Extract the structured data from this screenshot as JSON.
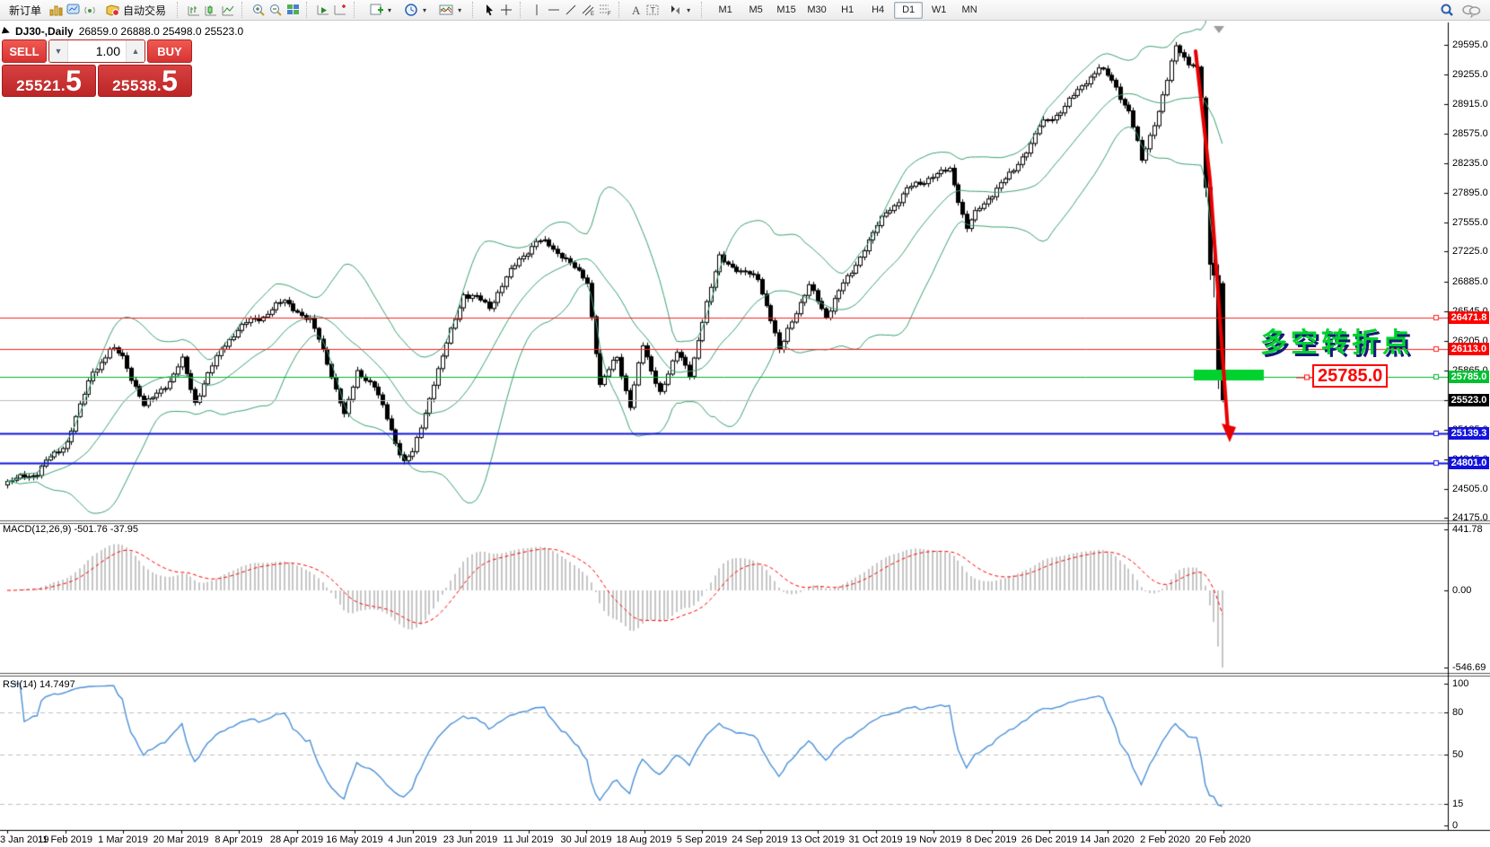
{
  "toolbar": {
    "new_order": "新订单",
    "autotrade": "自动交易",
    "timeframes": [
      "M1",
      "M5",
      "M15",
      "M30",
      "H1",
      "H4",
      "D1",
      "W1",
      "MN"
    ],
    "active_timeframe": "D1",
    "icons": [
      "charts-gold-icon",
      "terminal-icon",
      "signals-icon",
      "autotrade-icon",
      "bar-chart-icon",
      "candlestick-icon",
      "line-chart-icon",
      "zoom-in-icon",
      "zoom-out-icon",
      "tile-windows-icon",
      "auto-scroll-icon",
      "chart-shift-icon",
      "new-chart-icon",
      "period-icon",
      "indicators-icon",
      "cursor-icon",
      "crosshair-icon",
      "vertical-line-icon",
      "horizontal-line-icon",
      "trendline-icon",
      "channel-icon",
      "fibonacci-icon",
      "text-icon",
      "text-label-icon",
      "arrows-icon",
      "search-icon",
      "chat-icon"
    ]
  },
  "trade": {
    "sell_label": "SELL",
    "buy_label": "BUY",
    "volume": "1.00",
    "sell_price_main": "25521.",
    "sell_price_big": "5",
    "buy_price_main": "25538.",
    "buy_price_big": "5"
  },
  "chart": {
    "symbol_period": "DJ30-,Daily",
    "ohlc_text": "26859.0 26888.0 25498.0 25523.0"
  },
  "indicators": {
    "macd_label": "MACD(12,26,9)",
    "macd_values": "-501.76 -37.95",
    "rsi_label": "RSI(14)",
    "rsi_value": "14.7497"
  },
  "annotations": {
    "turning_point": "多空转折点",
    "level_label": "25785.0"
  },
  "colors": {
    "bands": "#3ba272",
    "candle_up": "#ffffff",
    "candle_down": "#000000",
    "macd_bar": "#c6c6c6",
    "macd_signal": "#ff0000",
    "rsi_line": "#4a90d8",
    "red_level": "#ff2020",
    "green_level": "#00b42d",
    "blue_level": "#1212e0",
    "current_line": "#bbbbbb",
    "arrow": "#e80000",
    "green_bar": "#00d22e"
  },
  "chart_data": [
    {
      "type": "candlestick",
      "symbol": "DJ30-",
      "timeframe": "Daily",
      "candle_count": 286,
      "last_ohlc": {
        "open": 26859.0,
        "high": 26888.0,
        "low": 25498.0,
        "close": 25523.0
      },
      "y_axis_labels": [
        "29595.0",
        "29255.0",
        "28915.0",
        "28575.0",
        "28235.0",
        "27895.0",
        "27555.0",
        "27225.0",
        "26885.0",
        "26545.0",
        "26205.0",
        "25865.0",
        "25525.0",
        "25185.0",
        "24845.0",
        "24505.0",
        "24175.0"
      ],
      "x_labels": [
        "3 Jan 2019",
        "11 Feb 2019",
        "1 Mar 2019",
        "20 Mar 2019",
        "8 Apr 2019",
        "28 Apr 2019",
        "16 May 2019",
        "4 Jun 2019",
        "23 Jun 2019",
        "11 Jul 2019",
        "30 Jul 2019",
        "18 Aug 2019",
        "5 Sep 2019",
        "24 Sep 2019",
        "13 Oct 2019",
        "31 Oct 2019",
        "19 Nov 2019",
        "8 Dec 2019",
        "26 Dec 2019",
        "14 Jan 2020",
        "2 Feb 2020",
        "20 Feb 2020"
      ],
      "bollinger": {
        "period": 20,
        "deviation": 2
      },
      "price_path_anchors": [
        [
          0,
          24576
        ],
        [
          7,
          24700
        ],
        [
          14,
          25053
        ],
        [
          20,
          25850
        ],
        [
          24,
          26092
        ],
        [
          27,
          26026
        ],
        [
          32,
          25450
        ],
        [
          38,
          25750
        ],
        [
          41,
          25962
        ],
        [
          44,
          25517
        ],
        [
          50,
          26100
        ],
        [
          54,
          26341
        ],
        [
          60,
          26500
        ],
        [
          65,
          26656
        ],
        [
          71,
          26430
        ],
        [
          75,
          25980
        ],
        [
          79,
          25325
        ],
        [
          82,
          25862
        ],
        [
          86,
          25680
        ],
        [
          93,
          24815
        ],
        [
          95,
          24900
        ],
        [
          100,
          25720
        ],
        [
          107,
          26753
        ],
        [
          113,
          26600
        ],
        [
          118,
          27000
        ],
        [
          124,
          27359
        ],
        [
          130,
          27200
        ],
        [
          136,
          26864
        ],
        [
          139,
          25718
        ],
        [
          143,
          26000
        ],
        [
          146,
          25479
        ],
        [
          149,
          26136
        ],
        [
          151,
          25850
        ],
        [
          153,
          25629
        ],
        [
          157,
          26050
        ],
        [
          160,
          25840
        ],
        [
          167,
          27182
        ],
        [
          172,
          26970
        ],
        [
          176,
          26950
        ],
        [
          181,
          26078
        ],
        [
          183,
          26350
        ],
        [
          188,
          26820
        ],
        [
          192,
          26500
        ],
        [
          199,
          27090
        ],
        [
          206,
          27680
        ],
        [
          213,
          28005
        ],
        [
          221,
          28164
        ],
        [
          225,
          27502
        ],
        [
          230,
          27850
        ],
        [
          236,
          28150
        ],
        [
          242,
          28645
        ],
        [
          248,
          28890
        ],
        [
          256,
          29348
        ],
        [
          260,
          29100
        ],
        [
          263,
          28850
        ],
        [
          266,
          28256
        ],
        [
          270,
          28850
        ],
        [
          274,
          29551
        ],
        [
          277,
          29400
        ],
        [
          279,
          29348
        ],
        [
          280,
          28992
        ],
        [
          281,
          27960
        ],
        [
          282,
          27081
        ],
        [
          283,
          26957
        ],
        [
          284,
          25766
        ],
        [
          285,
          25523
        ]
      ],
      "final_candles": [
        [
          29340,
          29360,
          28900,
          28992
        ],
        [
          28985,
          29010,
          27850,
          27960
        ],
        [
          27960,
          27990,
          26900,
          27081
        ],
        [
          27090,
          27210,
          26700,
          26957
        ],
        [
          26950,
          27080,
          25650,
          25766
        ],
        [
          26859,
          26888,
          25498,
          25523
        ]
      ],
      "levels": [
        {
          "price": 26471.8,
          "label": "26471.8",
          "color": "red",
          "width": 1,
          "badge": "#ff0000"
        },
        {
          "price": 26113.0,
          "label": "26113.0",
          "color": "red",
          "width": 1,
          "badge": "#ff0000"
        },
        {
          "price": 25785.0,
          "label": "25785.0",
          "color": "green",
          "width": 1,
          "badge": "#00c030"
        },
        {
          "price": 25523.0,
          "label": "25523.0",
          "color": "gray",
          "width": 1,
          "badge": "#000000"
        },
        {
          "price": 25139.3,
          "label": "25139.3",
          "color": "blue",
          "width": 2,
          "badge": "#1212e0"
        },
        {
          "price": 24801.0,
          "label": "24801.0",
          "color": "blue",
          "width": 2,
          "badge": "#1212e0"
        }
      ]
    },
    {
      "type": "bar",
      "name": "MACD",
      "params": "12,26,9",
      "current_values": [
        -501.76,
        -37.95
      ],
      "axis_labels": [
        "441.78",
        "0.00",
        "-546.69"
      ],
      "axis_values": [
        441.78,
        0.0,
        -546.69
      ]
    },
    {
      "type": "line",
      "name": "RSI",
      "params": "14",
      "current_value": 14.7497,
      "axis_labels": [
        "100",
        "80",
        "50",
        "15",
        "0"
      ],
      "axis_values": [
        100,
        80,
        50,
        15,
        0
      ],
      "dashed_levels": [
        80,
        50,
        15
      ]
    }
  ]
}
